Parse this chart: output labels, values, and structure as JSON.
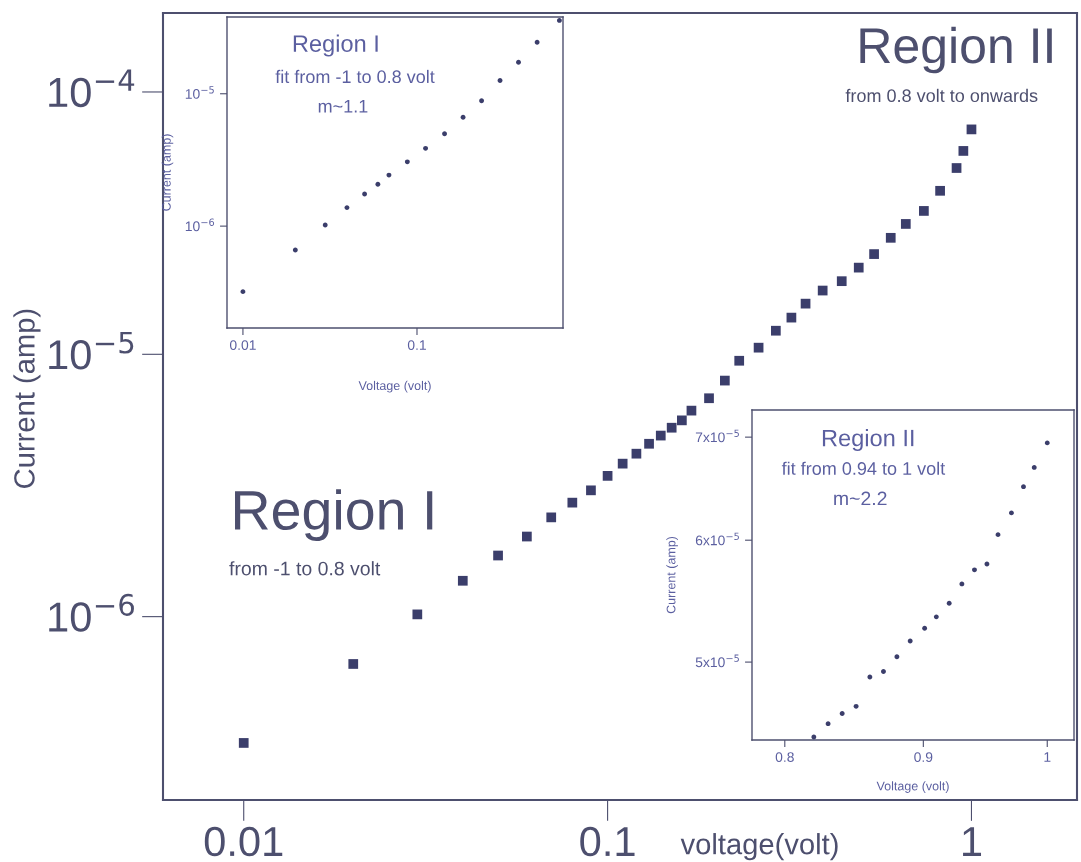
{
  "chart_data": [
    {
      "type": "scatter",
      "xlabel": "voltage(volt)",
      "ylabel": "Current (amp)",
      "log": "xy",
      "marker": "square",
      "xlim": [
        0.006,
        1.95
      ],
      "ylim": [
        2e-07,
        0.0002
      ],
      "xticks": [
        0.01,
        0.1,
        1
      ],
      "yticks": [
        {
          "value": 1e-06,
          "label": "10$^{−6}$"
        },
        {
          "value": 1e-05,
          "label": "10$^{−5}$"
        },
        {
          "value": 0.0001,
          "label": "10$^{−4}$"
        }
      ],
      "annotations": [
        "Region I",
        "from -1 to 0.8 volt",
        "Region II",
        "from 0.8 volt to onwards"
      ],
      "series": [
        {
          "color": "#3b3e6b",
          "x": [
            0.01,
            0.02,
            0.03,
            0.04,
            0.05,
            0.06,
            0.07,
            0.08,
            0.09,
            0.1,
            0.11,
            0.12,
            0.13,
            0.14,
            0.15,
            0.16,
            0.17,
            0.19,
            0.21,
            0.23,
            0.26,
            0.29,
            0.32,
            0.35,
            0.39,
            0.44,
            0.49,
            0.54,
            0.6,
            0.66,
            0.74,
            0.82,
            0.91,
            0.95,
            1.0
          ],
          "values": [
            3.3e-07,
            6.6e-07,
            1.02e-06,
            1.37e-06,
            1.71e-06,
            2.02e-06,
            2.39e-06,
            2.72e-06,
            3.03e-06,
            3.44e-06,
            3.83e-06,
            4.18e-06,
            4.56e-06,
            4.9e-06,
            5.25e-06,
            5.6e-06,
            6.1e-06,
            6.8e-06,
            7.94e-06,
            9.45e-06,
            1.06e-05,
            1.23e-05,
            1.38e-05,
            1.56e-05,
            1.75e-05,
            1.9e-05,
            2.14e-05,
            2.41e-05,
            2.78e-05,
            3.14e-05,
            3.52e-05,
            4.2e-05,
            5.13e-05,
            5.96e-05,
            7.2e-05
          ]
        }
      ]
    },
    {
      "type": "scatter",
      "xlabel": "Voltage (volt)",
      "ylabel": "Current (amp)",
      "log": "xy",
      "marker": "circle",
      "xlim": [
        0.0081,
        0.69
      ],
      "ylim": [
        1.7e-07,
        3.8e-05
      ],
      "xticks": [
        0.01,
        0.1
      ],
      "yticks": [
        {
          "value": 1e-06,
          "label": "10$^{−6}$"
        },
        {
          "value": 1e-05,
          "label": "10$^{−5}$"
        }
      ],
      "annotations": [
        "Region I",
        "fit from -1 to 0.8 volt",
        "m~1.1"
      ],
      "series": [
        {
          "color": "#3b3e6b",
          "x": [
            0.01,
            0.02,
            0.0297,
            0.0396,
            0.05,
            0.0596,
            0.069,
            0.088,
            0.112,
            0.144,
            0.184,
            0.235,
            0.3,
            0.383,
            0.49,
            0.658
          ],
          "values": [
            3.2e-07,
            6.6e-07,
            1.02e-06,
            1.38e-06,
            1.75e-06,
            2.07e-06,
            2.43e-06,
            3.06e-06,
            3.87e-06,
            4.99e-06,
            6.64e-06,
            8.85e-06,
            1.26e-05,
            1.73e-05,
            2.45e-05,
            3.58e-05
          ]
        }
      ]
    },
    {
      "type": "scatter",
      "xlabel": "Voltage (volt)",
      "ylabel": "Current (amp)",
      "log": "xy",
      "marker": "circle",
      "xlim": [
        0.778,
        1.023
      ],
      "ylim": [
        4.45e-05,
        7.29e-05
      ],
      "xticks": [
        0.8,
        0.9,
        1
      ],
      "yticks": [
        {
          "value": 5e-05,
          "label": "5x10$^{−5}$"
        },
        {
          "value": 6e-05,
          "label": "6x10$^{−5}$"
        },
        {
          "value": 7e-05,
          "label": "7x10$^{−5}$"
        }
      ],
      "annotations": [
        "Region II",
        "fit from 0.94 to 1 volt",
        "m~2.2"
      ],
      "series": [
        {
          "color": "#3b3e6b",
          "x": [
            0.82,
            0.83,
            0.84,
            0.85,
            0.86,
            0.87,
            0.88,
            0.89,
            0.901,
            0.91,
            0.92,
            0.93,
            0.94,
            0.95,
            0.959,
            0.97,
            0.98,
            0.989,
            1.0
          ],
          "values": [
            4.47e-05,
            4.56e-05,
            4.63e-05,
            4.68e-05,
            4.89e-05,
            4.93e-05,
            5.04e-05,
            5.16e-05,
            5.26e-05,
            5.35e-05,
            5.46e-05,
            5.62e-05,
            5.74e-05,
            5.79e-05,
            6.05e-05,
            6.25e-05,
            6.5e-05,
            6.69e-05,
            6.94e-05
          ]
        }
      ]
    }
  ]
}
